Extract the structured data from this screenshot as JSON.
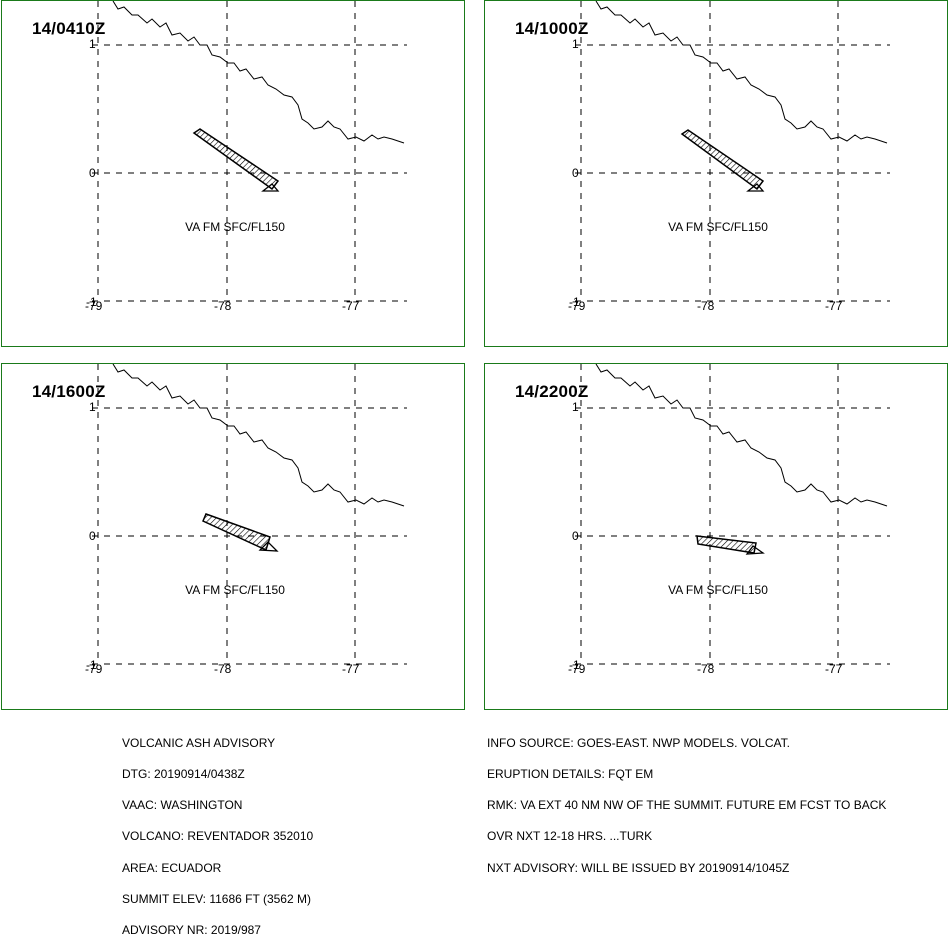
{
  "panels": [
    {
      "time": "14/0410Z",
      "label": "VA FM SFC/FL150"
    },
    {
      "time": "14/1000Z",
      "label": "VA FM SFC/FL150"
    },
    {
      "time": "14/1600Z",
      "label": "VA FM SFC/FL150"
    },
    {
      "time": "14/2200Z",
      "label": "VA FM SFC/FL150"
    }
  ],
  "lat_labels": [
    "1",
    "0",
    "-1"
  ],
  "lon_labels": [
    "-79",
    "-78",
    "-77"
  ],
  "advisory_left": [
    "VOLCANIC ASH ADVISORY",
    "DTG: 20190914/0438Z",
    "VAAC: WASHINGTON",
    "VOLCANO: REVENTADOR 352010",
    "AREA: ECUADOR",
    "SUMMIT ELEV: 11686 FT (3562 M)",
    "ADVISORY NR: 2019/987"
  ],
  "advisory_right": [
    "INFO SOURCE: GOES-EAST. NWP MODELS. VOLCAT.",
    "ERUPTION DETAILS: FQT EM",
    "RMK: VA EXT 40 NM NW OF THE SUMMIT. FUTURE EM FCST TO BACK",
    "OVR NXT 12-18 HRS. ...TURK",
    "NXT ADVISORY: WILL BE ISSUED BY 20190914/1045Z"
  ]
}
